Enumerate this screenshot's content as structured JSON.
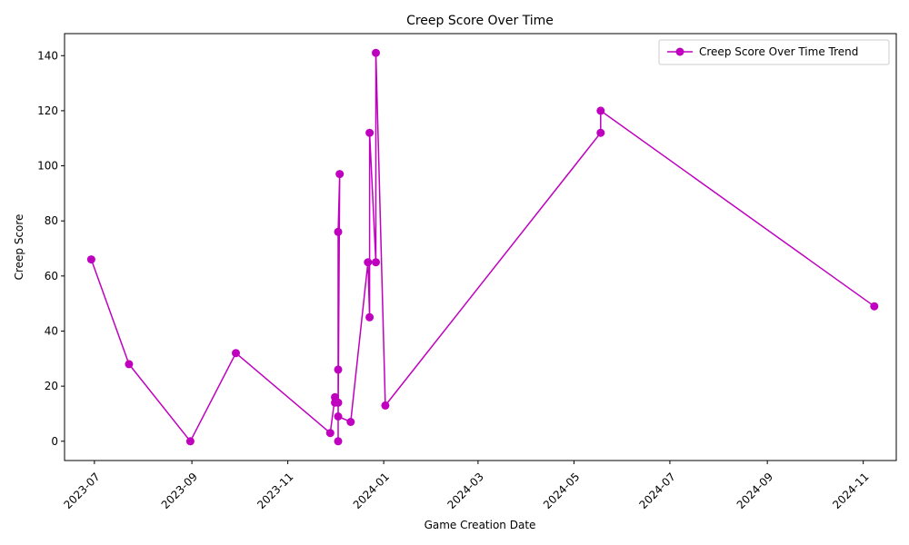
{
  "chart_data": {
    "type": "line",
    "title": "Creep Score Over Time",
    "xlabel": "Game Creation Date",
    "ylabel": "Creep Score",
    "x_ticks": [
      "2023-07",
      "2023-09",
      "2023-11",
      "2024-01",
      "2024-03",
      "2024-05",
      "2024-07",
      "2024-09",
      "2024-11"
    ],
    "y_ticks": [
      0,
      20,
      40,
      60,
      80,
      100,
      120,
      140
    ],
    "xlim": [
      "2023-06-12",
      "2024-11-22"
    ],
    "ylim": [
      -7,
      148
    ],
    "legend_position": "top-right",
    "grid": false,
    "series": [
      {
        "name": "Creep Score Over Time Trend",
        "color": "#bf00bf",
        "marker": "circle",
        "points": [
          {
            "x": "2023-06-29",
            "y": 66
          },
          {
            "x": "2023-07-23",
            "y": 28
          },
          {
            "x": "2023-08-31",
            "y": 0
          },
          {
            "x": "2023-09-29",
            "y": 32
          },
          {
            "x": "2023-11-28",
            "y": 3
          },
          {
            "x": "2023-12-01",
            "y": 16
          },
          {
            "x": "2023-12-01",
            "y": 14
          },
          {
            "x": "2023-12-03",
            "y": 14
          },
          {
            "x": "2023-12-03",
            "y": 0
          },
          {
            "x": "2023-12-03",
            "y": 26
          },
          {
            "x": "2023-12-03",
            "y": 76
          },
          {
            "x": "2023-12-04",
            "y": 97
          },
          {
            "x": "2023-12-03",
            "y": 9
          },
          {
            "x": "2023-12-11",
            "y": 7
          },
          {
            "x": "2023-12-22",
            "y": 65
          },
          {
            "x": "2023-12-23",
            "y": 45
          },
          {
            "x": "2023-12-23",
            "y": 112
          },
          {
            "x": "2023-12-27",
            "y": 65
          },
          {
            "x": "2023-12-27",
            "y": 141
          },
          {
            "x": "2024-01-02",
            "y": 13
          },
          {
            "x": "2024-05-18",
            "y": 112
          },
          {
            "x": "2024-05-18",
            "y": 120
          },
          {
            "x": "2024-11-08",
            "y": 49
          }
        ]
      }
    ]
  }
}
